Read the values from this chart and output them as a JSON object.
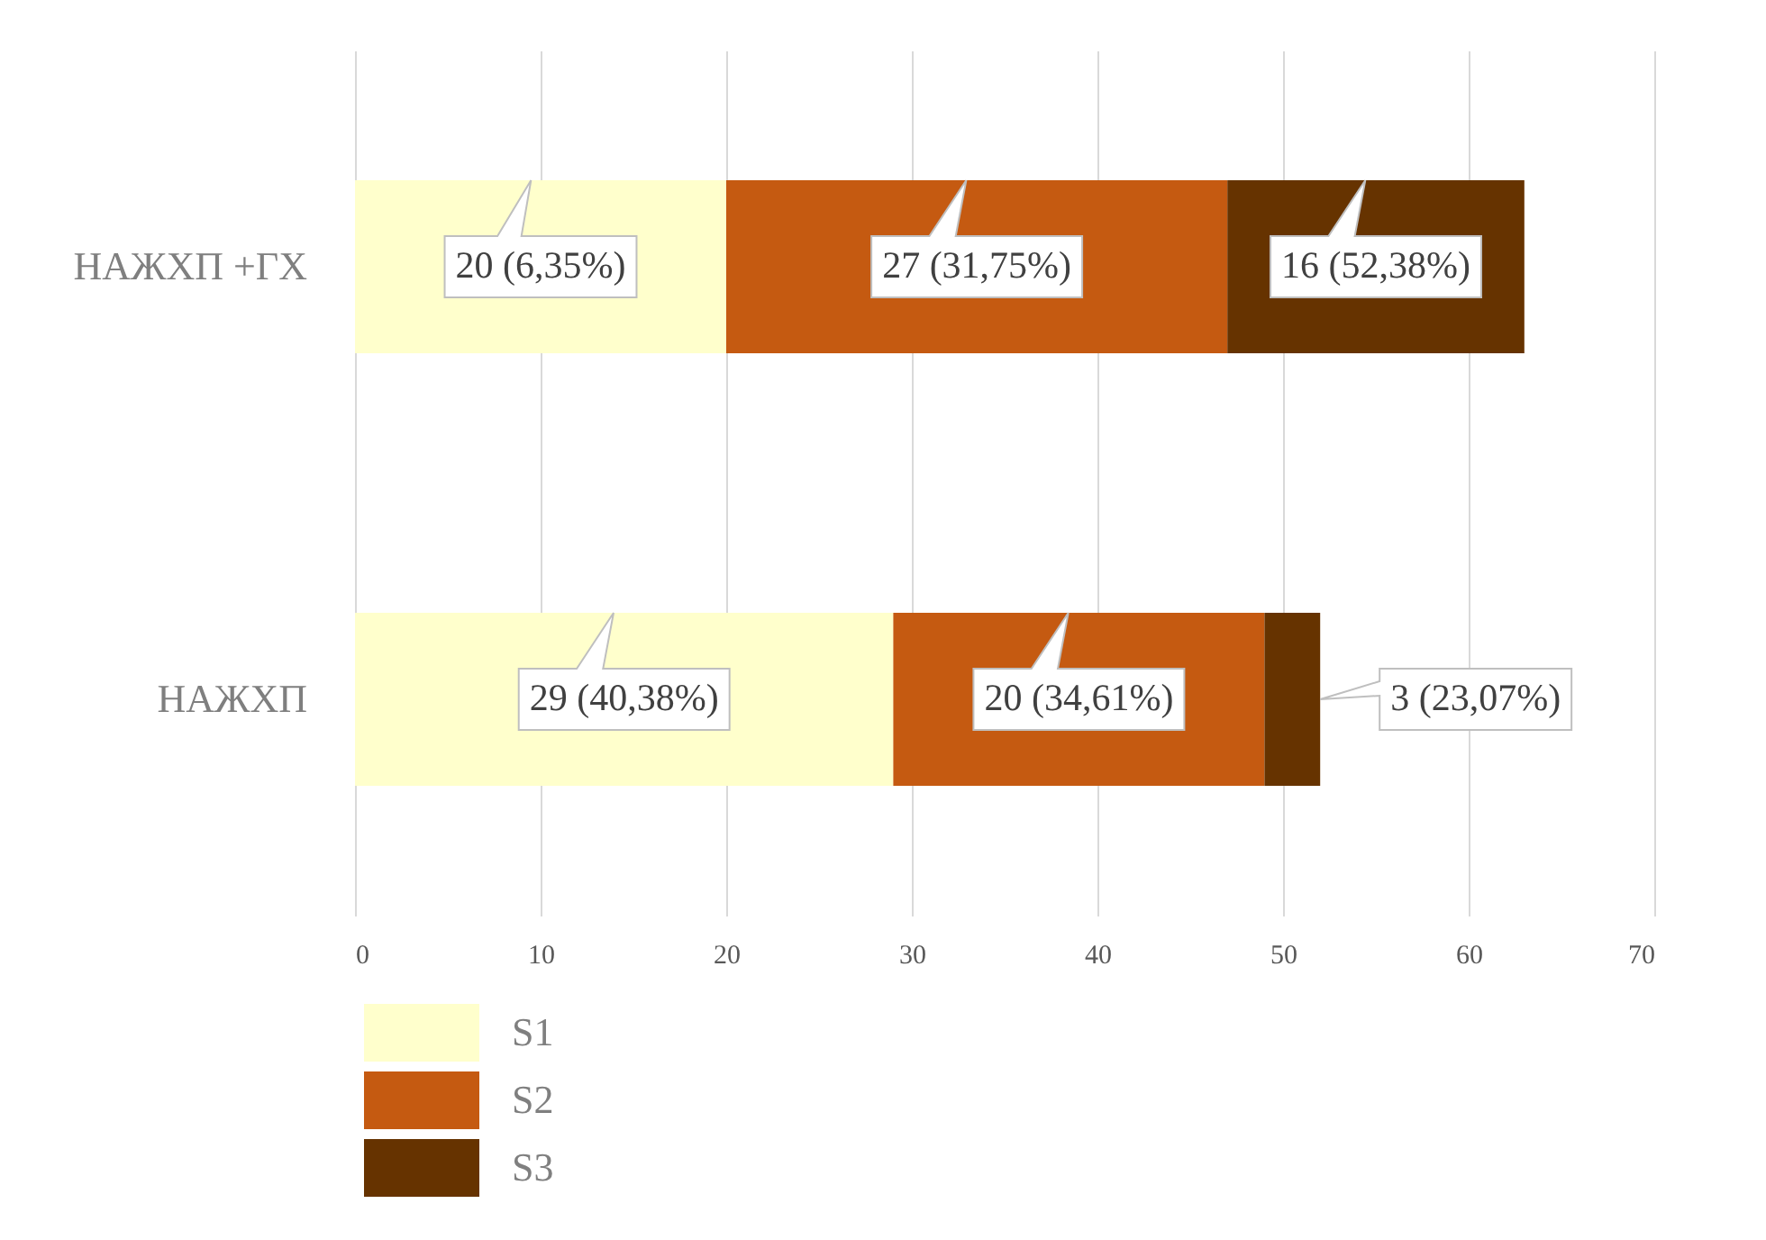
{
  "chart_data": {
    "type": "bar",
    "orientation": "horizontal",
    "stacked": true,
    "categories": [
      "НАЖХП +ГХ",
      "НАЖХП"
    ],
    "series": [
      {
        "name": "S1",
        "color": "#ffffcc",
        "values": [
          20,
          29
        ],
        "value_labels": [
          "20 (6,35%)",
          "29 (40,38%)"
        ]
      },
      {
        "name": "S2",
        "color": "#c55a11",
        "values": [
          27,
          20
        ],
        "value_labels": [
          "27 (31,75%)",
          "20 (34,61%)"
        ]
      },
      {
        "name": "S3",
        "color": "#663300",
        "values": [
          16,
          3
        ],
        "value_labels": [
          "16 (52,38%)",
          "3 (23,07%)"
        ]
      }
    ],
    "xlim": [
      0,
      70
    ],
    "xticks": [
      0,
      10,
      20,
      30,
      40,
      50,
      60,
      70
    ],
    "grid": "x",
    "legend": "bottom left"
  }
}
